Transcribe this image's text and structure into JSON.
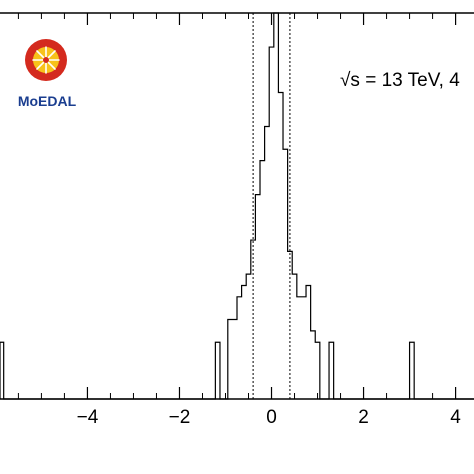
{
  "chart_data": {
    "type": "histogram",
    "title": "",
    "xlabel": "",
    "ylabel": "",
    "xlim": [
      -5.9,
      4.4
    ],
    "ylim": [
      0,
      34
    ],
    "x_ticks": [
      -4,
      -2,
      0,
      2,
      4
    ],
    "x_tick_labels": [
      "−4",
      "−2",
      "0",
      "2",
      "4"
    ],
    "grid": false,
    "legend": "none",
    "bin_edges": [
      -5.9,
      -5.82,
      -1.22,
      -1.12,
      -0.95,
      -0.85,
      -0.75,
      -0.65,
      -0.55,
      -0.45,
      -0.35,
      -0.25,
      -0.15,
      -0.05,
      0.05,
      0.15,
      0.25,
      0.35,
      0.45,
      0.55,
      0.65,
      0.75,
      0.85,
      0.95,
      1.05,
      1.25,
      1.35,
      3.0,
      3.1,
      4.4
    ],
    "counts": [
      5,
      0,
      5,
      0,
      7,
      7,
      9,
      10,
      11,
      14,
      18,
      21,
      24,
      31,
      34,
      27,
      22,
      13,
      11,
      9,
      9,
      10,
      6,
      5,
      0,
      5,
      0,
      5,
      0
    ],
    "cut_lines": [
      -0.4,
      0.4
    ],
    "cut_line_style": "dotted",
    "annotation": "√s = 13 TeV, 4",
    "colors": {
      "line": "#000000",
      "background": "#ffffff"
    }
  },
  "logo": {
    "text": "MoEDAL",
    "colors": {
      "ring": "#d42a1e",
      "core": "#f7c21b",
      "text": "#1a3d8f",
      "spark": "#ffffff"
    }
  }
}
